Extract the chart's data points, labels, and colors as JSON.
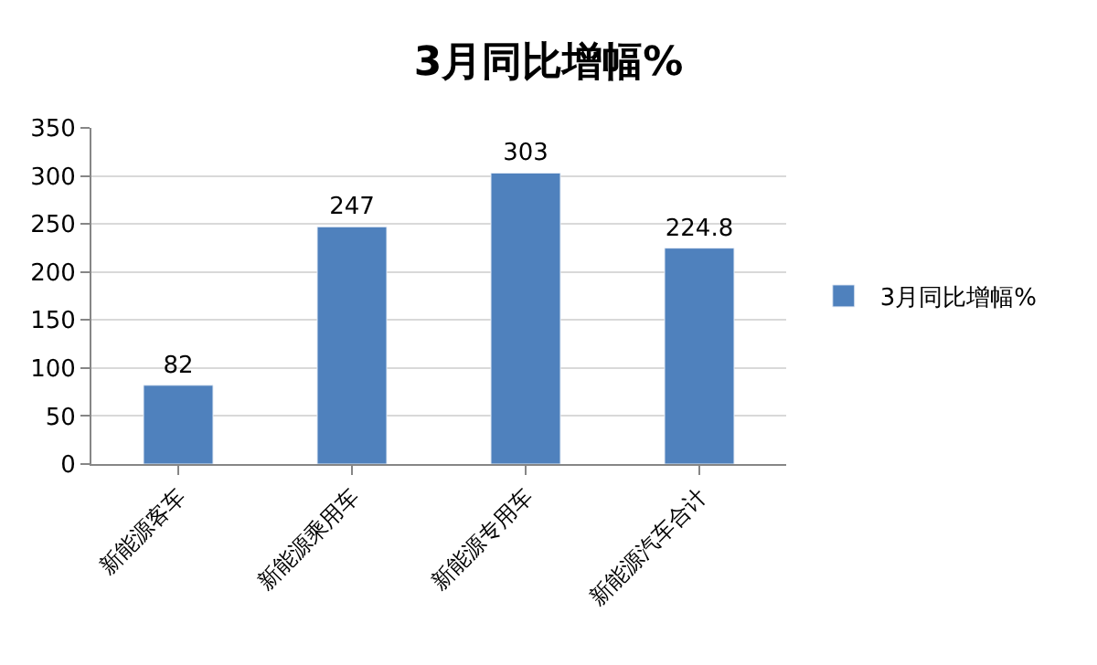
{
  "chart_data": {
    "type": "bar",
    "title": "3月同比增幅%",
    "categories": [
      "新能源客车",
      "新能源乘用车",
      "新能源专用车",
      "新能源汽车合计"
    ],
    "series": [
      {
        "name": "3月同比增幅%",
        "color": "#4f81bd",
        "values": [
          82,
          247,
          303,
          224.8
        ]
      }
    ],
    "ylim": [
      0,
      350
    ],
    "yticks": [
      0,
      50,
      100,
      150,
      200,
      250,
      300,
      350
    ],
    "grid": "y",
    "legend": "right",
    "data_labels": true
  }
}
